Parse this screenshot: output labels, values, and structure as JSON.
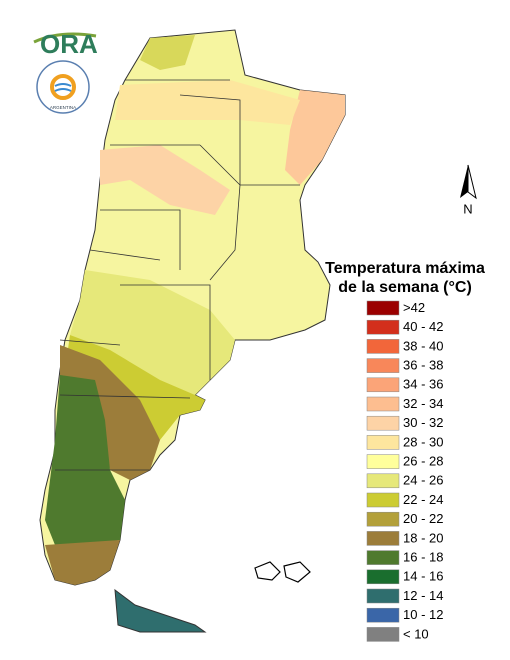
{
  "logo": {
    "text": "ORA",
    "seal": "ARGENTINA"
  },
  "compass": {
    "label": "N"
  },
  "legend": {
    "title": [
      "Temperatura máxima",
      "de la semana (°C)"
    ],
    "items": [
      {
        "label": ">42",
        "color": "#9b0000"
      },
      {
        "label": "40 - 42",
        "color": "#d32f1c"
      },
      {
        "label": "38 - 40",
        "color": "#f2663a"
      },
      {
        "label": "36 - 38",
        "color": "#f8875a"
      },
      {
        "label": "34 - 36",
        "color": "#fba478"
      },
      {
        "label": "32 - 34",
        "color": "#fdbe90"
      },
      {
        "label": "30 - 32",
        "color": "#fdd3a6"
      },
      {
        "label": "28 - 30",
        "color": "#fde69e"
      },
      {
        "label": "26 - 28",
        "color": "#ffff9c"
      },
      {
        "label": "24 - 26",
        "color": "#e6e87a"
      },
      {
        "label": "22 - 24",
        "color": "#cccc33"
      },
      {
        "label": "20 - 22",
        "color": "#b3a03a"
      },
      {
        "label": "18 - 20",
        "color": "#9c7d3a"
      },
      {
        "label": "16 - 18",
        "color": "#4f7a2e"
      },
      {
        "label": "14 - 16",
        "color": "#1a6e2e"
      },
      {
        "label": "12 - 14",
        "color": "#2f6e6e"
      },
      {
        "label": "10 - 12",
        "color": "#3a66a8"
      },
      {
        "label": "< 10",
        "color": "#808080"
      }
    ]
  }
}
